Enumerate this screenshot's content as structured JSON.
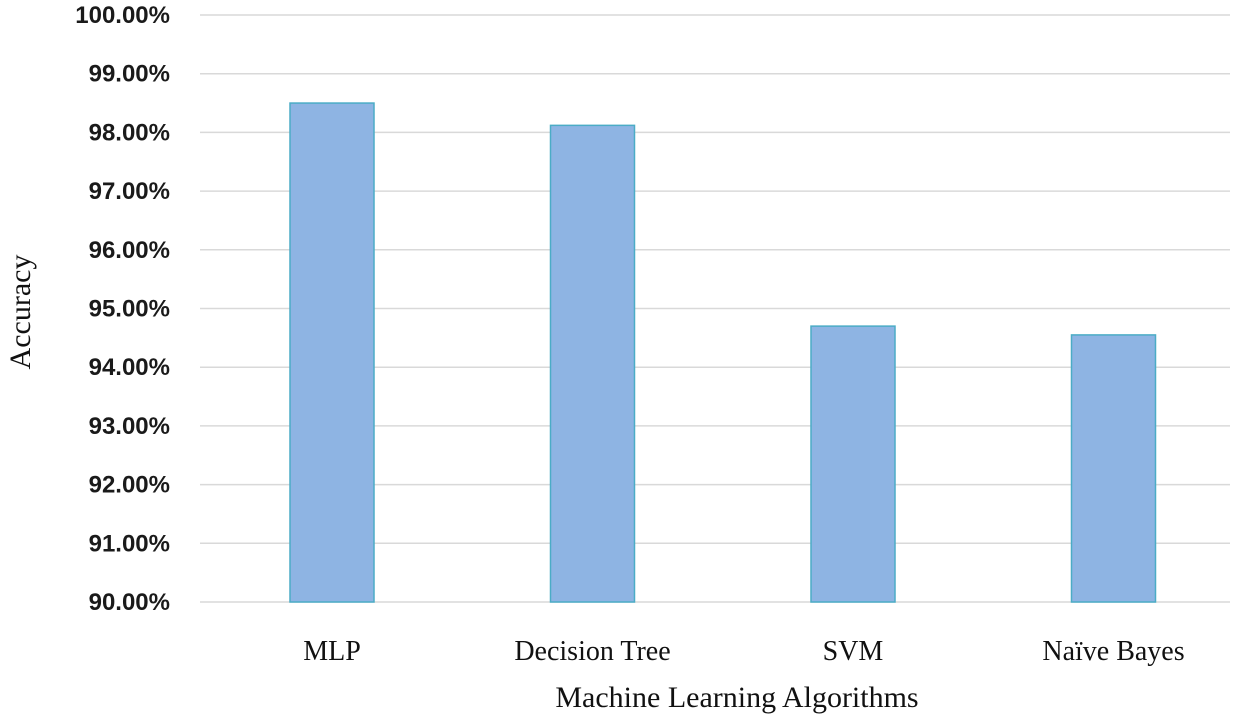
{
  "chart_data": {
    "type": "bar",
    "title": "",
    "xlabel": "Machine Learning Algorithms",
    "ylabel": "Accuracy",
    "categories": [
      "MLP",
      "Decision Tree",
      "SVM",
      "Naïve Bayes"
    ],
    "values": [
      98.5,
      98.12,
      94.7,
      94.55
    ],
    "ylim": [
      90,
      100
    ],
    "yticks": [
      90,
      91,
      92,
      93,
      94,
      95,
      96,
      97,
      98,
      99,
      100
    ],
    "ytick_labels": [
      "90.00%",
      "91.00%",
      "92.00%",
      "93.00%",
      "94.00%",
      "95.00%",
      "96.00%",
      "97.00%",
      "98.00%",
      "99.00%",
      "100.00%"
    ],
    "grid": true,
    "legend": "none",
    "colors": {
      "bar_fill": "#8eb4e3",
      "bar_edge": "#4bacc6",
      "grid": "#d9d9d9"
    }
  }
}
